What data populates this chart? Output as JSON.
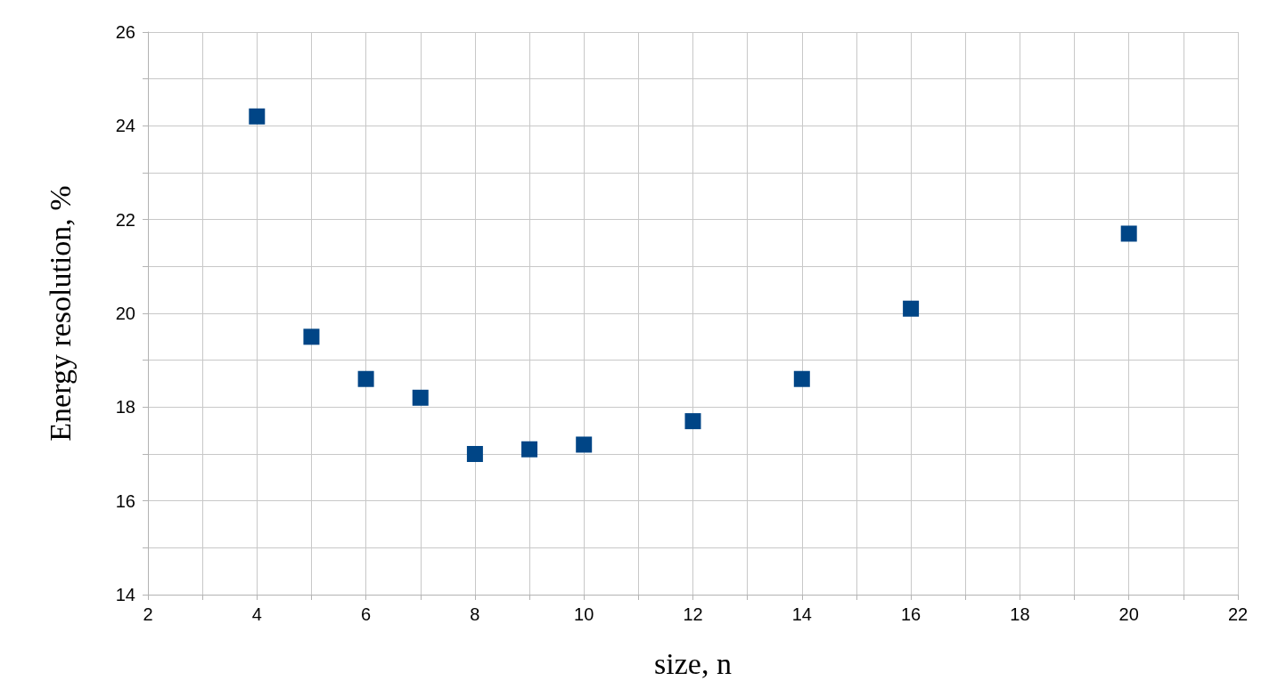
{
  "chart_data": {
    "type": "scatter",
    "xlabel": "size, n",
    "ylabel": "Energy resolution, %",
    "x": [
      4,
      5,
      6,
      7,
      8,
      9,
      10,
      12,
      14,
      16,
      20
    ],
    "series": [
      {
        "color": "#004586",
        "values": [
          24.2,
          19.5,
          18.6,
          18.2,
          17.0,
          17.1,
          17.2,
          17.7,
          18.6,
          20.1,
          21.7
        ]
      }
    ],
    "xlim": [
      2,
      22
    ],
    "xticks": [
      2,
      {
        "value": 3,
        "label": null
      },
      4,
      {
        "value": 5,
        "label": null
      },
      6,
      {
        "value": 7,
        "label": null
      },
      8,
      {
        "value": 9,
        "label": null
      },
      10,
      {
        "value": 11,
        "label": null
      },
      12,
      {
        "value": 13,
        "label": null
      },
      14,
      {
        "value": 15,
        "label": null
      },
      16,
      {
        "value": 17,
        "label": null
      },
      18,
      {
        "value": 19,
        "label": null
      },
      20,
      {
        "value": 21,
        "label": null
      },
      22
    ],
    "ylim": [
      14,
      26
    ],
    "yticks": [
      14,
      {
        "value": 15,
        "label": null
      },
      16,
      {
        "value": 17,
        "label": null
      },
      18,
      {
        "value": 19,
        "label": null
      },
      20,
      {
        "value": 21,
        "label": null
      },
      22,
      {
        "value": 23,
        "label": null
      },
      24,
      {
        "value": 25,
        "label": null
      },
      26
    ],
    "grid": true,
    "marker": "square"
  }
}
